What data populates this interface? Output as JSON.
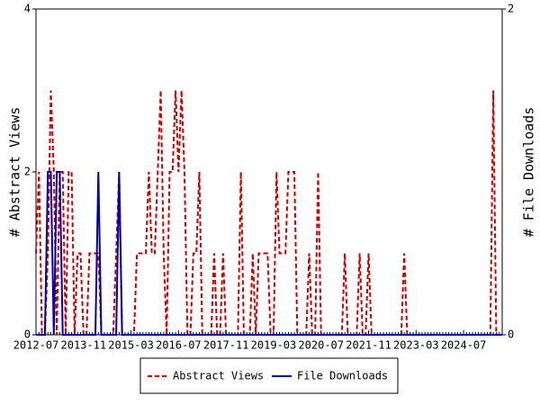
{
  "chart_data": {
    "type": "line",
    "categories": [
      "2012-07",
      null,
      null,
      null,
      null,
      null,
      null,
      null,
      null,
      null,
      null,
      null,
      null,
      null,
      null,
      null,
      "2013-11",
      null,
      null,
      null,
      null,
      null,
      null,
      null,
      null,
      null,
      null,
      null,
      null,
      null,
      null,
      null,
      "2015-03",
      null,
      null,
      null,
      null,
      null,
      null,
      null,
      null,
      null,
      null,
      null,
      null,
      null,
      null,
      null,
      "2016-07",
      null,
      null,
      null,
      null,
      null,
      null,
      null,
      null,
      null,
      null,
      null,
      null,
      null,
      null,
      null,
      "2017-11",
      null,
      null,
      null,
      null,
      null,
      null,
      null,
      null,
      null,
      null,
      null,
      null,
      null,
      null,
      null,
      "2019-03",
      null,
      null,
      null,
      null,
      null,
      null,
      null,
      null,
      null,
      null,
      null,
      null,
      null,
      null,
      null,
      "2020-07",
      null,
      null,
      null,
      null,
      null,
      null,
      null,
      null,
      null,
      null,
      null,
      null,
      null,
      null,
      null,
      "2021-11",
      null,
      null,
      null,
      null,
      null,
      null,
      null,
      null,
      null,
      null,
      null,
      null,
      null,
      null,
      null,
      "2023-03",
      null,
      null,
      null,
      null,
      null,
      null,
      null,
      null,
      null,
      null,
      null,
      null,
      null,
      null,
      null,
      "2024-07",
      null,
      null,
      null,
      null,
      null,
      null,
      null,
      null,
      null,
      null,
      null,
      null,
      null
    ],
    "series": [
      {
        "name": "Abstract Views",
        "color": "#cc0000",
        "dashed": true,
        "axis": "y",
        "values": [
          1,
          2,
          0,
          0,
          1,
          3,
          2,
          0,
          2,
          2,
          0,
          2,
          2,
          0,
          1,
          1,
          0,
          0,
          1,
          1,
          1,
          1,
          0,
          0,
          0,
          0,
          0,
          1,
          2,
          0,
          0,
          0,
          0,
          0,
          1,
          1,
          1,
          1,
          2,
          1,
          1,
          2,
          3,
          1,
          0,
          2,
          2,
          3,
          2,
          3,
          2,
          0,
          0,
          1,
          1,
          2,
          0,
          0,
          0,
          0,
          1,
          0,
          0,
          1,
          0,
          0,
          0,
          0,
          0,
          2,
          0,
          0,
          0,
          1,
          0,
          1,
          1,
          1,
          1,
          0,
          0,
          2,
          1,
          1,
          1,
          2,
          2,
          2,
          0,
          0,
          0,
          0,
          1,
          0,
          0,
          2,
          0,
          0,
          0,
          0,
          0,
          0,
          0,
          0,
          1,
          0,
          0,
          0,
          0,
          1,
          0,
          0,
          1,
          0,
          0,
          0,
          0,
          0,
          0,
          0,
          0,
          0,
          0,
          0,
          1,
          0,
          0,
          0,
          0,
          0,
          0,
          0,
          0,
          0,
          0,
          0,
          0,
          0,
          0,
          0,
          0,
          0,
          0,
          0,
          0,
          0,
          0,
          0,
          0,
          0,
          0,
          0,
          0,
          0,
          3,
          0,
          0,
          0
        ]
      },
      {
        "name": "File Downloads",
        "color": "#0000aa",
        "dashed": false,
        "axis": "y2",
        "values": [
          0,
          0,
          0,
          0,
          1,
          1,
          0,
          1,
          1,
          0,
          0,
          0,
          0,
          0,
          0,
          0,
          0,
          0,
          0,
          0,
          0,
          1,
          0,
          0,
          0,
          0,
          0,
          0,
          1,
          0,
          0,
          0,
          0,
          0,
          0,
          0,
          0,
          0,
          0,
          0,
          0,
          0,
          0,
          0,
          0,
          0,
          0,
          0,
          0,
          0,
          0,
          0,
          0,
          0,
          0,
          0,
          0,
          0,
          0,
          0,
          0,
          0,
          0,
          0,
          0,
          0,
          0,
          0,
          0,
          0,
          0,
          0,
          0,
          0,
          0,
          0,
          0,
          0,
          0,
          0,
          0,
          0,
          0,
          0,
          0,
          0,
          0,
          0,
          0,
          0,
          0,
          0,
          0,
          0,
          0,
          0,
          0,
          0,
          0,
          0,
          0,
          0,
          0,
          0,
          0,
          0,
          0,
          0,
          0,
          0,
          0,
          0,
          0,
          0,
          0,
          0,
          0,
          0,
          0,
          0,
          0,
          0,
          0,
          0,
          0,
          0,
          0,
          0,
          0,
          0,
          0,
          0,
          0,
          0,
          0,
          0,
          0,
          0,
          0,
          0,
          0,
          0,
          0,
          0,
          0,
          0,
          0,
          0,
          0,
          0,
          0,
          0,
          0,
          0,
          0,
          0,
          0,
          0
        ]
      }
    ],
    "ylabel": "# Abstract Views",
    "y2label": "# File Downloads",
    "ylim": [
      0,
      4
    ],
    "yticks": [
      0,
      2,
      4
    ],
    "y2lim": [
      0,
      2
    ],
    "y2ticks": [
      0,
      2
    ],
    "legend": "bottom"
  }
}
